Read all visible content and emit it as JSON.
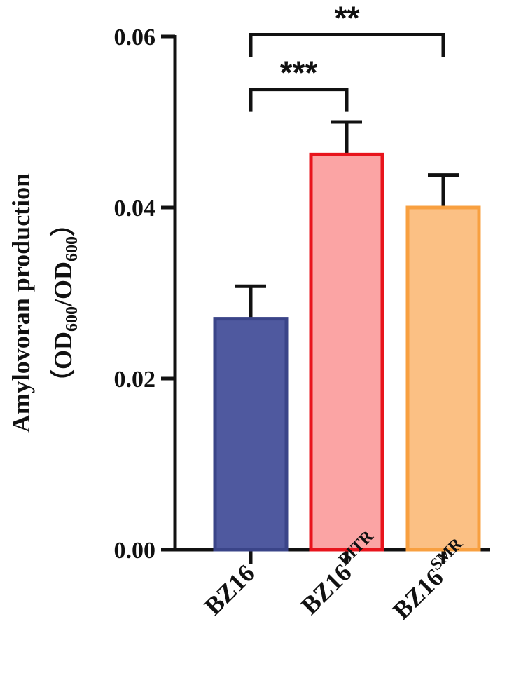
{
  "chart_data": {
    "type": "bar",
    "ylabel_line1": "Amylovoran production",
    "ylabel_line2": {
      "open": "（",
      "od1": "OD",
      "sub1": "600",
      "slash": "/OD",
      "sub2": "600",
      "close": "）"
    },
    "ylim": [
      0,
      0.06
    ],
    "yticks": [
      {
        "value": 0.0,
        "label": "0.00"
      },
      {
        "value": 0.02,
        "label": "0.02"
      },
      {
        "value": 0.04,
        "label": "0.04"
      },
      {
        "value": 0.06,
        "label": "0.06"
      }
    ],
    "bars": [
      {
        "base": "BZ16",
        "sup": "",
        "value": 0.027,
        "error": 0.0038,
        "fill": "#4f599f",
        "stroke": "#3a4488"
      },
      {
        "base": "BZ16",
        "sup": "BITR",
        "value": 0.0462,
        "error": 0.0038,
        "fill": "#fba4a4",
        "stroke": "#e8141c"
      },
      {
        "base": "BZ16",
        "sup": "SMR",
        "value": 0.04,
        "error": 0.0038,
        "fill": "#fbc084",
        "stroke": "#f8a040"
      }
    ],
    "significance": [
      {
        "from": 0,
        "to": 2,
        "label": "**",
        "y": 0.0602
      },
      {
        "from": 0,
        "to": 1,
        "label": "***",
        "y": 0.0538
      }
    ]
  }
}
